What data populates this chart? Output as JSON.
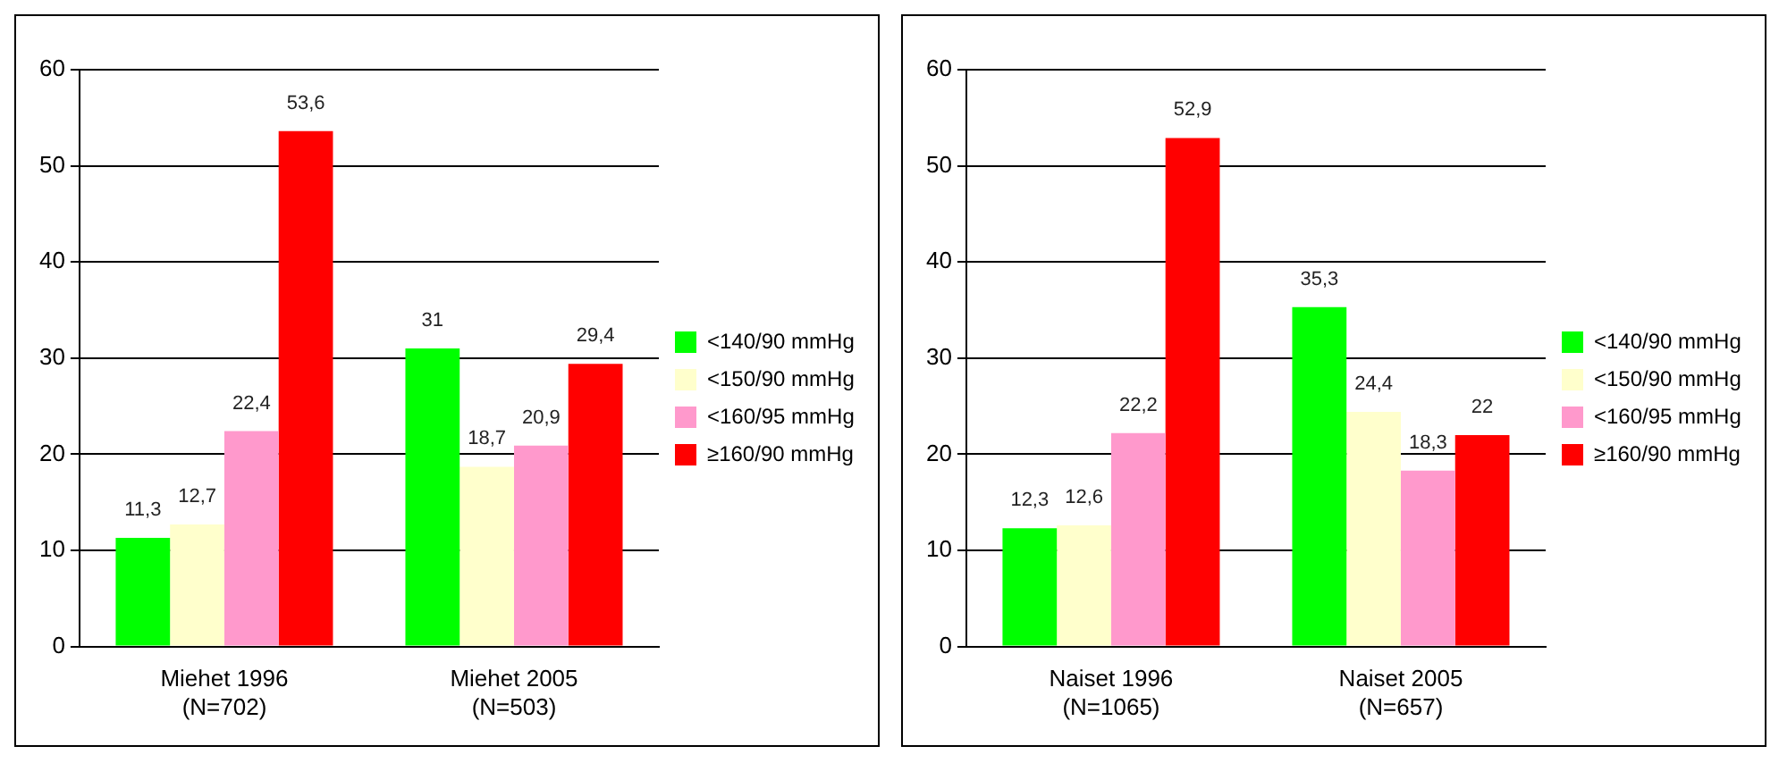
{
  "chart_data": [
    {
      "type": "bar",
      "categories": [
        "Miehet 1996\n(N=702)",
        "Miehet 2005\n(N=503)"
      ],
      "ylim": [
        0,
        60
      ],
      "yticks": [
        0,
        10,
        20,
        30,
        40,
        50,
        60
      ],
      "grid": "y",
      "legend": "right",
      "series": [
        {
          "name": "<140/90 mmHg",
          "color": "#00ff00",
          "values": [
            11.3,
            31
          ],
          "value_labels": [
            "11,3",
            "31"
          ]
        },
        {
          "name": "<150/90 mmHg",
          "color": "#ffffcc",
          "values": [
            12.7,
            18.7
          ],
          "value_labels": [
            "12,7",
            "18,7"
          ]
        },
        {
          "name": "<160/95 mmHg",
          "color": "#ff99cc",
          "values": [
            22.4,
            20.9
          ],
          "value_labels": [
            "22,4",
            "20,9"
          ]
        },
        {
          "name": "≥160/90 mmHg",
          "color": "#ff0000",
          "values": [
            53.6,
            29.4
          ],
          "value_labels": [
            "53,6",
            "29,4"
          ]
        }
      ]
    },
    {
      "type": "bar",
      "categories": [
        "Naiset 1996\n(N=1065)",
        "Naiset 2005\n(N=657)"
      ],
      "ylim": [
        0,
        60
      ],
      "yticks": [
        0,
        10,
        20,
        30,
        40,
        50,
        60
      ],
      "grid": "y",
      "legend": "right",
      "series": [
        {
          "name": "<140/90 mmHg",
          "color": "#00ff00",
          "values": [
            12.3,
            35.3
          ],
          "value_labels": [
            "12,3",
            "35,3"
          ]
        },
        {
          "name": "<150/90 mmHg",
          "color": "#ffffcc",
          "values": [
            12.6,
            24.4
          ],
          "value_labels": [
            "12,6",
            "24,4"
          ]
        },
        {
          "name": "<160/95 mmHg",
          "color": "#ff99cc",
          "values": [
            22.2,
            18.3
          ],
          "value_labels": [
            "22,2",
            "18,3"
          ]
        },
        {
          "name": "≥160/90 mmHg",
          "color": "#ff0000",
          "values": [
            52.9,
            22
          ],
          "value_labels": [
            "52,9",
            "22"
          ]
        }
      ]
    }
  ]
}
